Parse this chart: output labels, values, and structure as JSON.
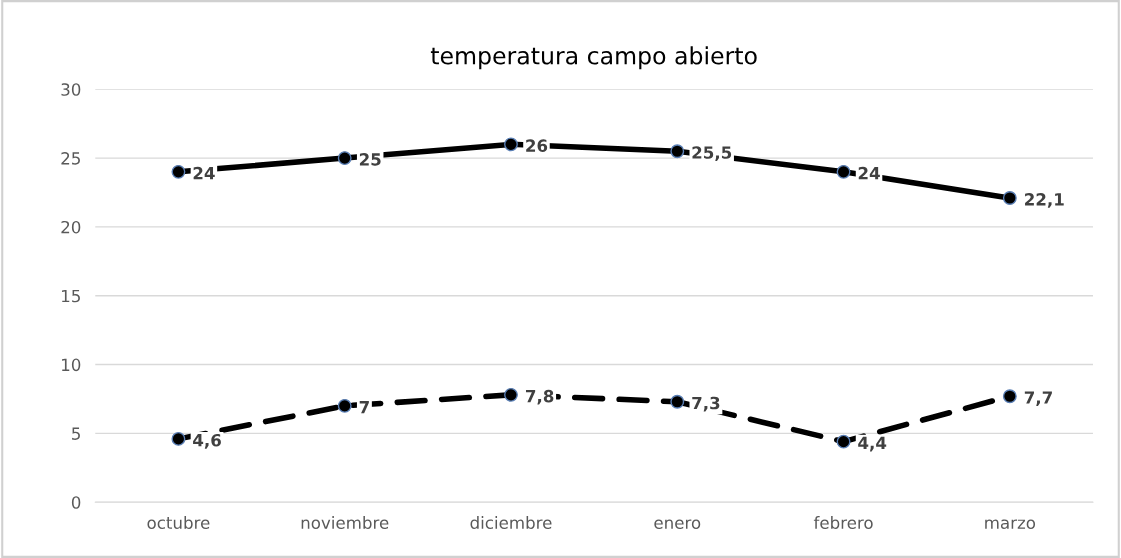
{
  "chart_data": {
    "type": "line",
    "title": "temperatura campo abierto",
    "categories": [
      "octubre",
      "noviembre",
      "diciembre",
      "enero",
      "febrero",
      "marzo"
    ],
    "series": [
      {
        "color": "#000000",
        "values": [
          24,
          25,
          26,
          25.5,
          24,
          22.1
        ],
        "value_labels": [
          "24",
          "25",
          "26",
          "25,5",
          "24",
          "22,1"
        ],
        "line_style": "solid"
      },
      {
        "color": "#000000",
        "values": [
          4.6,
          7,
          7.8,
          7.3,
          4.4,
          7.7
        ],
        "value_labels": [
          "4,6",
          "7",
          "7,8",
          "7,3",
          "4,4",
          "7,7"
        ],
        "line_style": "dashed"
      }
    ],
    "ylim": [
      0,
      30
    ],
    "yticks": [
      0,
      5,
      10,
      15,
      20,
      25,
      30
    ],
    "grid": "y",
    "marker": "circle"
  }
}
